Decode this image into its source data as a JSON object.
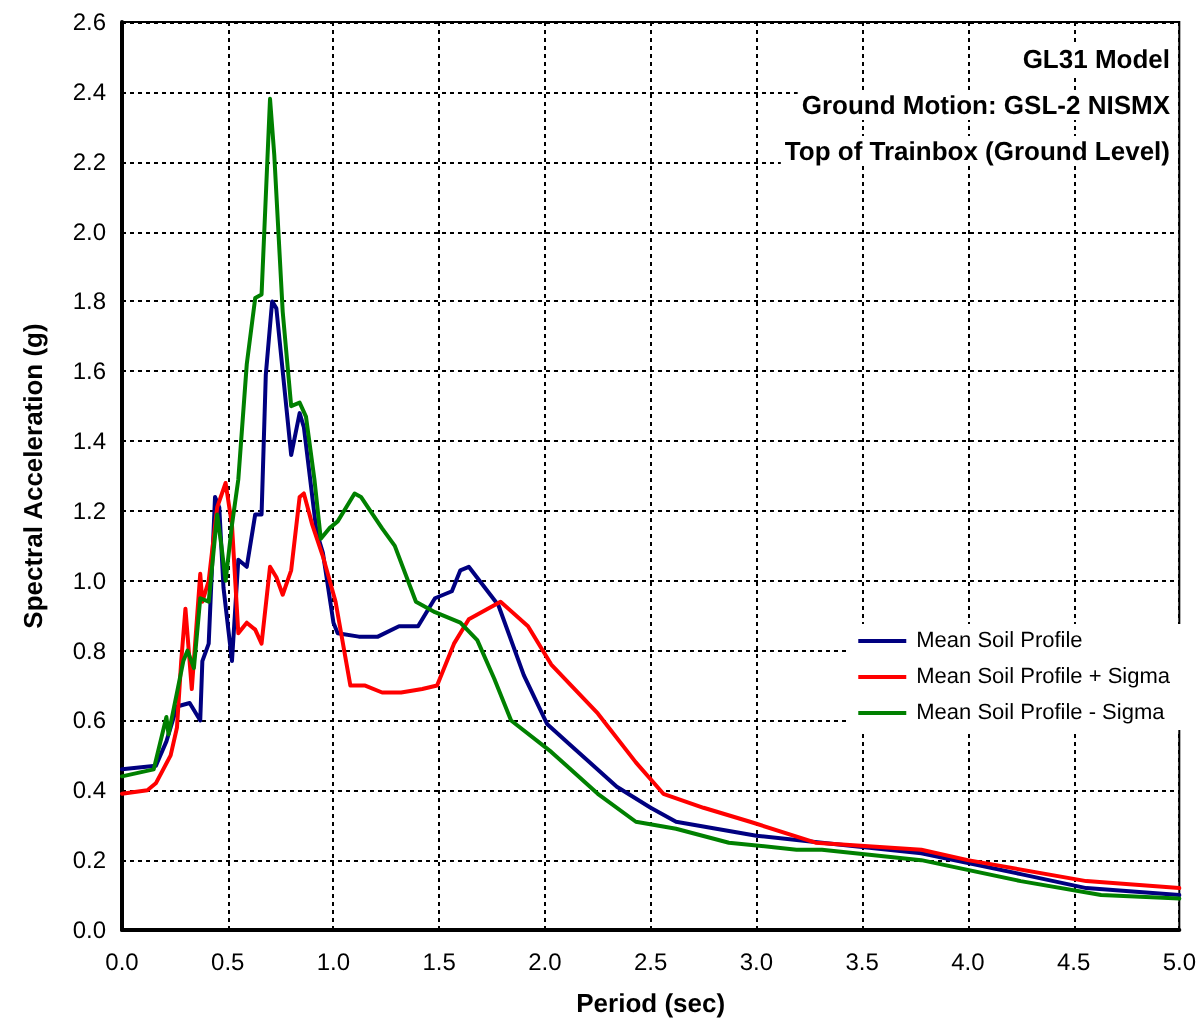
{
  "chart_data": {
    "type": "line",
    "title": "GL31 Model",
    "annotations": [
      "Ground Motion: GSL-2 NISMX",
      "Top of Trainbox (Ground Level)"
    ],
    "xlabel": "Period (sec)",
    "ylabel": "Spectral Acceleration (g)",
    "xlim": [
      0,
      5
    ],
    "ylim": [
      0,
      2.6
    ],
    "xticks": [
      {
        "value": 0,
        "label": "0.0"
      },
      {
        "value": 0.5,
        "label": "0.5"
      },
      {
        "value": 1,
        "label": "1.0"
      },
      {
        "value": 1.5,
        "label": "1.5"
      },
      {
        "value": 2,
        "label": "2.0"
      },
      {
        "value": 2.5,
        "label": "2.5"
      },
      {
        "value": 3,
        "label": "3.0"
      },
      {
        "value": 3.5,
        "label": "3.5"
      },
      {
        "value": 4,
        "label": "4.0"
      },
      {
        "value": 4.5,
        "label": "4.5"
      },
      {
        "value": 5,
        "label": "5.0"
      }
    ],
    "yticks": [
      {
        "value": 0,
        "label": "0.0"
      },
      {
        "value": 0.2,
        "label": "0.2"
      },
      {
        "value": 0.4,
        "label": "0.4"
      },
      {
        "value": 0.6,
        "label": "0.6"
      },
      {
        "value": 0.8,
        "label": "0.8"
      },
      {
        "value": 1,
        "label": "1.0"
      },
      {
        "value": 1.2,
        "label": "1.2"
      },
      {
        "value": 1.4,
        "label": "1.4"
      },
      {
        "value": 1.6,
        "label": "1.6"
      },
      {
        "value": 1.8,
        "label": "1.8"
      },
      {
        "value": 2,
        "label": "2.0"
      },
      {
        "value": 2.2,
        "label": "2.2"
      },
      {
        "value": 2.4,
        "label": "2.4"
      },
      {
        "value": 2.6,
        "label": "2.6"
      }
    ],
    "grid": true,
    "legend": "right",
    "marker": "none",
    "line_style": "solid",
    "series": [
      {
        "name": "Mean Soil Profile",
        "color": "#000080",
        "x": [
          0,
          0.16,
          0.21,
          0.26,
          0.32,
          0.37,
          0.38,
          0.41,
          0.44,
          0.46,
          0.48,
          0.52,
          0.55,
          0.59,
          0.63,
          0.66,
          0.68,
          0.71,
          0.73,
          0.8,
          0.84,
          0.86,
          0.92,
          0.95,
          1,
          1.02,
          1.12,
          1.21,
          1.31,
          1.4,
          1.48,
          1.56,
          1.6,
          1.64,
          1.78,
          1.9,
          2.01,
          2.12,
          2.34,
          2.5,
          2.62,
          2.81,
          3,
          3.31,
          3.78,
          4.25,
          4.56,
          5
        ],
        "values": [
          0.46,
          0.47,
          0.54,
          0.64,
          0.65,
          0.6,
          0.77,
          0.82,
          1.24,
          1.21,
          0.98,
          0.77,
          1.06,
          1.04,
          1.19,
          1.19,
          1.59,
          1.8,
          1.78,
          1.36,
          1.48,
          1.44,
          1.14,
          1.08,
          0.88,
          0.85,
          0.84,
          0.84,
          0.87,
          0.87,
          0.95,
          0.97,
          1.03,
          1.04,
          0.93,
          0.73,
          0.59,
          0.53,
          0.41,
          0.35,
          0.31,
          0.29,
          0.27,
          0.25,
          0.22,
          0.16,
          0.12,
          0.1
        ]
      },
      {
        "name": "Mean Soil Profile + Sigma",
        "color": "#ff0000",
        "x": [
          0,
          0.12,
          0.16,
          0.23,
          0.26,
          0.28,
          0.3,
          0.33,
          0.37,
          0.38,
          0.41,
          0.45,
          0.49,
          0.52,
          0.55,
          0.59,
          0.63,
          0.66,
          0.7,
          0.73,
          0.76,
          0.8,
          0.84,
          0.86,
          0.9,
          0.95,
          1.01,
          1.08,
          1.15,
          1.23,
          1.32,
          1.42,
          1.49,
          1.57,
          1.64,
          1.73,
          1.79,
          1.92,
          2.03,
          2.25,
          2.43,
          2.56,
          2.75,
          2.97,
          3.28,
          3.78,
          4,
          4.56,
          5
        ],
        "values": [
          0.39,
          0.4,
          0.42,
          0.5,
          0.58,
          0.77,
          0.92,
          0.69,
          1.02,
          0.94,
          1,
          1.21,
          1.28,
          1.16,
          0.85,
          0.88,
          0.86,
          0.82,
          1.04,
          1.01,
          0.96,
          1.03,
          1.24,
          1.25,
          1.16,
          1.07,
          0.94,
          0.7,
          0.7,
          0.68,
          0.68,
          0.69,
          0.7,
          0.82,
          0.89,
          0.92,
          0.94,
          0.87,
          0.76,
          0.62,
          0.48,
          0.39,
          0.35,
          0.31,
          0.25,
          0.23,
          0.2,
          0.14,
          0.12
        ]
      },
      {
        "name": "Mean Soil Profile - Sigma",
        "color": "#008000",
        "x": [
          0,
          0.15,
          0.19,
          0.21,
          0.22,
          0.26,
          0.29,
          0.31,
          0.34,
          0.37,
          0.41,
          0.45,
          0.47,
          0.49,
          0.52,
          0.55,
          0.59,
          0.63,
          0.66,
          0.67,
          0.7,
          0.72,
          0.76,
          0.8,
          0.84,
          0.87,
          0.91,
          0.94,
          0.98,
          1.02,
          1.1,
          1.13,
          1.23,
          1.29,
          1.39,
          1.48,
          1.6,
          1.68,
          1.76,
          1.84,
          2.03,
          2.25,
          2.43,
          2.62,
          2.87,
          3.19,
          3.31,
          3.78,
          4.25,
          4.63,
          5
        ],
        "values": [
          0.44,
          0.46,
          0.56,
          0.61,
          0.56,
          0.68,
          0.77,
          0.8,
          0.75,
          0.95,
          0.94,
          1.19,
          1.1,
          1,
          1.16,
          1.29,
          1.62,
          1.81,
          1.82,
          1.96,
          2.38,
          2.22,
          1.77,
          1.5,
          1.51,
          1.47,
          1.29,
          1.12,
          1.15,
          1.17,
          1.25,
          1.24,
          1.15,
          1.1,
          0.94,
          0.91,
          0.88,
          0.83,
          0.72,
          0.6,
          0.51,
          0.39,
          0.31,
          0.29,
          0.25,
          0.23,
          0.23,
          0.2,
          0.14,
          0.1,
          0.09
        ]
      }
    ]
  }
}
